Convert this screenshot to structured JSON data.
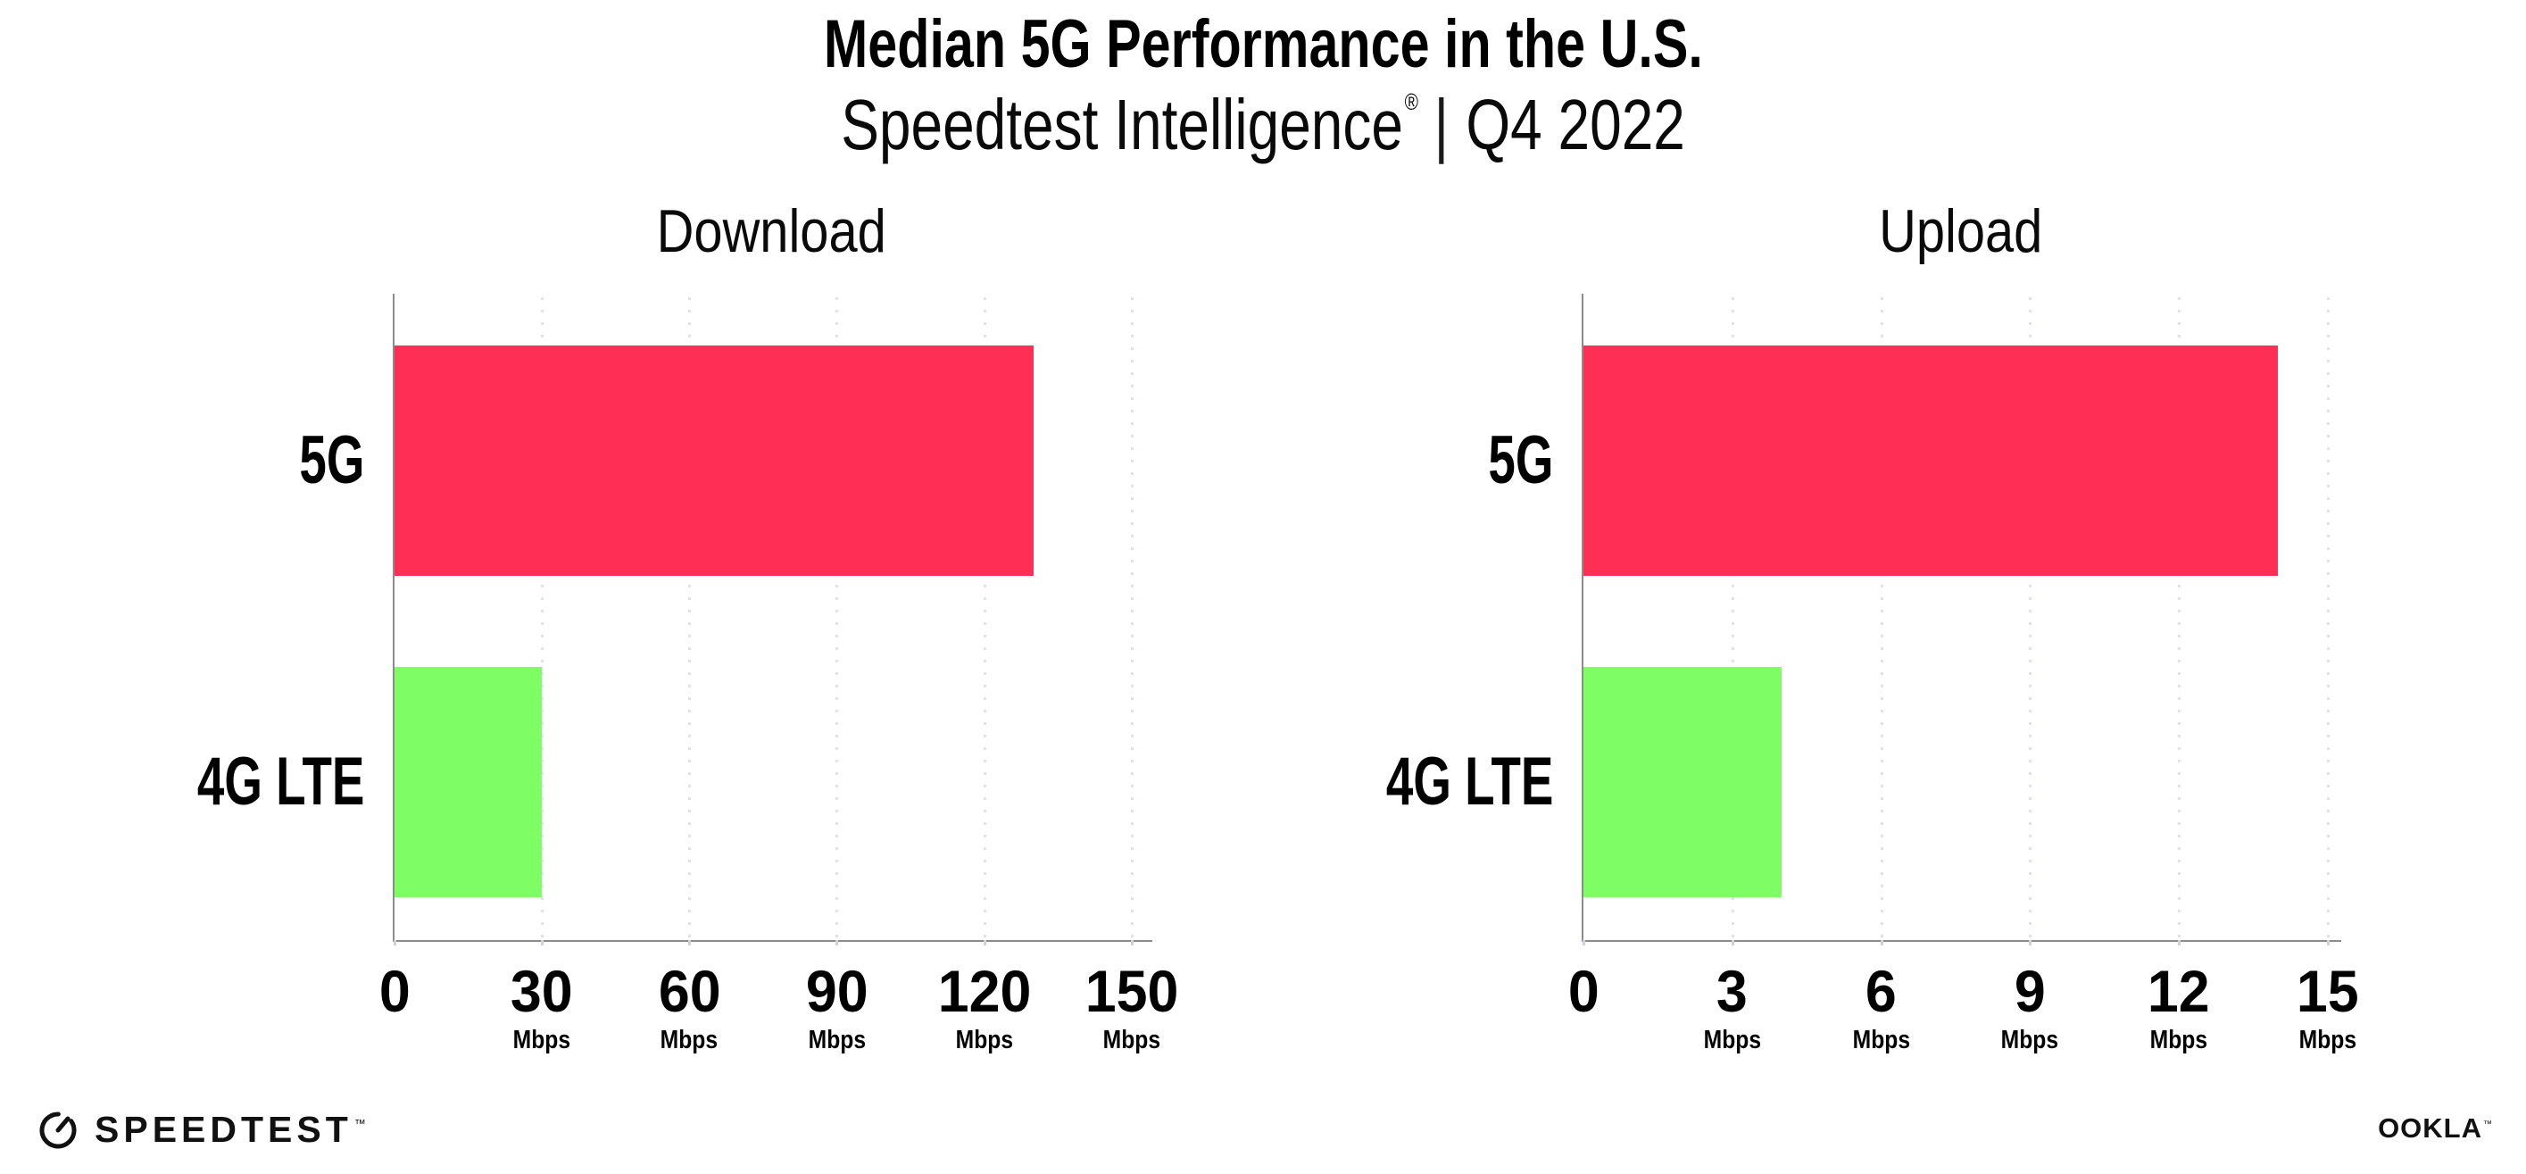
{
  "header": {
    "title": "Median 5G Performance in the U.S.",
    "subtitle_brand": "Speedtest Intelligence",
    "registered_mark": "®",
    "divider": "|",
    "period": "Q4 2022"
  },
  "footer": {
    "speedtest_wordmark": "SPEEDTEST",
    "speedtest_trademark": "™",
    "speedtest_icon": "gauge-icon",
    "ookla_wordmark": "OOKLA",
    "ookla_trademark": "™"
  },
  "colors": {
    "bar_5g": "#FF2E55",
    "bar_4g_lte": "#7EFD65",
    "axis": "#8c8c8c",
    "gridline": "#e0e0ea",
    "tick_mark": "#cfcfdd",
    "text": "#000000"
  },
  "chart_data": [
    {
      "type": "bar",
      "orientation": "horizontal",
      "title": "Download",
      "categories": [
        "5G",
        "4G LTE"
      ],
      "values": [
        130,
        30
      ],
      "unit": "Mbps",
      "xticks": [
        0,
        30,
        60,
        90,
        120,
        150
      ],
      "xlim": [
        0,
        153.5
      ],
      "bar_colors": [
        "#FF2E55",
        "#7EFD65"
      ],
      "grid": "dotted-vertical",
      "legend": "none"
    },
    {
      "type": "bar",
      "orientation": "horizontal",
      "title": "Upload",
      "categories": [
        "5G",
        "4G LTE"
      ],
      "values": [
        14,
        4
      ],
      "unit": "Mbps",
      "xticks": [
        0,
        3,
        6,
        9,
        12,
        15
      ],
      "xlim": [
        0,
        15.2
      ],
      "bar_colors": [
        "#FF2E55",
        "#7EFD65"
      ],
      "grid": "dotted-vertical",
      "legend": "none"
    }
  ]
}
